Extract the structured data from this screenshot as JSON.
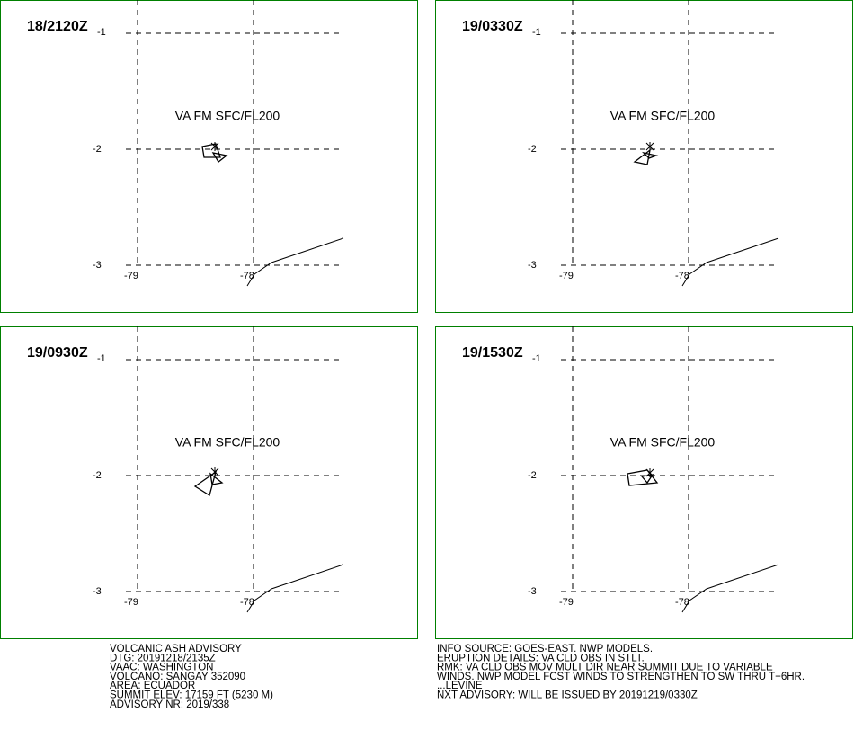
{
  "panels": [
    {
      "time": "18/2120Z",
      "annotation": "VA FM SFC/FL200",
      "lat_labels": [
        "-1",
        "-2",
        "-3"
      ],
      "lon_labels": [
        "-79",
        "-78"
      ]
    },
    {
      "time": "19/0330Z",
      "annotation": "VA FM SFC/FL200",
      "lat_labels": [
        "-1",
        "-2",
        "-3"
      ],
      "lon_labels": [
        "-79",
        "-78"
      ]
    },
    {
      "time": "19/0930Z",
      "annotation": "VA FM SFC/FL200",
      "lat_labels": [
        "-1",
        "-2",
        "-3"
      ],
      "lon_labels": [
        "-79",
        "-78"
      ]
    },
    {
      "time": "19/1530Z",
      "annotation": "VA FM SFC/FL200",
      "lat_labels": [
        "-1",
        "-2",
        "-3"
      ],
      "lon_labels": [
        "-79",
        "-78"
      ]
    }
  ],
  "advisory_left": [
    "VOLCANIC ASH ADVISORY",
    "DTG: 20191218/2135Z",
    "VAAC: WASHINGTON",
    "VOLCANO: SANGAY 352090",
    "AREA: ECUADOR",
    "SUMMIT ELEV: 17159 FT (5230 M)",
    "ADVISORY NR: 2019/338"
  ],
  "advisory_right": [
    "INFO SOURCE: GOES-EAST. NWP MODELS.",
    "ERUPTION DETAILS: VA CLD OBS IN STLT.",
    "RMK: VA CLD OBS MOV MULT DIR NEAR SUMMIT DUE TO VARIABLE",
    "WINDS. NWP MODEL FCST WINDS TO STRENGTHEN TO SW THRU T+6HR.",
    "...LEVINE",
    "NXT ADVISORY: WILL BE ISSUED BY 20191219/0330Z"
  ]
}
